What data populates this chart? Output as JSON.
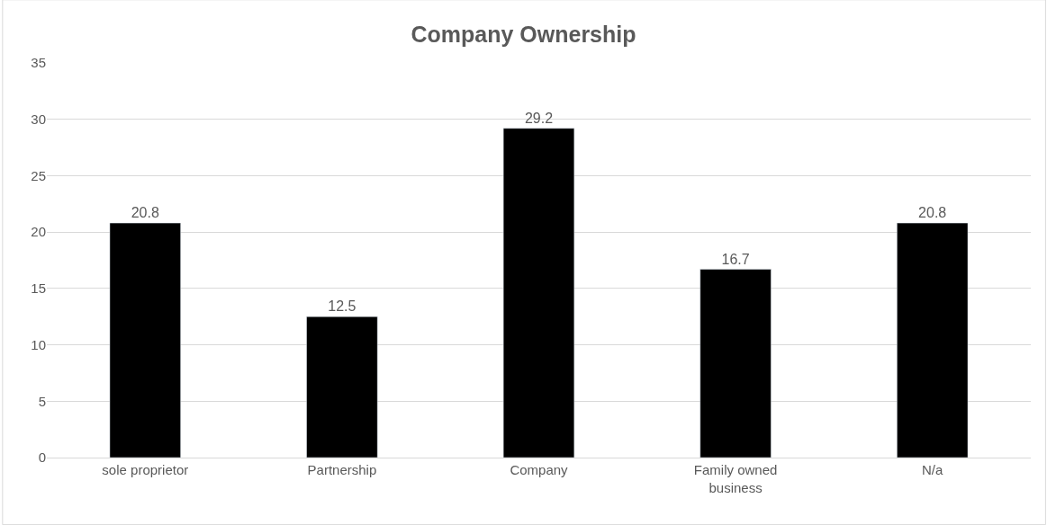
{
  "chart_data": {
    "type": "bar",
    "title": "Company Ownership",
    "categories": [
      "sole proprietor",
      "Partnership",
      "Company",
      "Family owned business",
      "N/a"
    ],
    "values": [
      20.8,
      12.5,
      29.2,
      16.7,
      20.8
    ],
    "color": "#000000",
    "ylim": [
      0,
      35
    ],
    "yticks": [
      0,
      5,
      10,
      15,
      20,
      25,
      30,
      35
    ],
    "grid": "y",
    "legend": false,
    "data_labels": true
  }
}
